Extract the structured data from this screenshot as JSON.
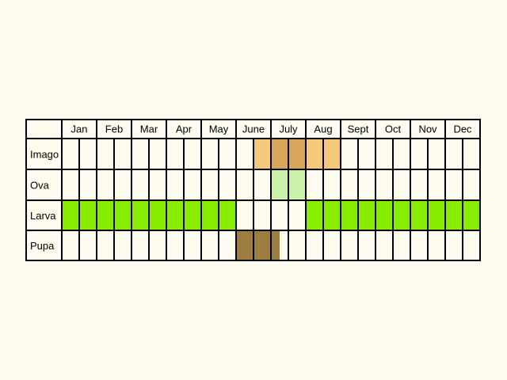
{
  "months": [
    "Jan",
    "Feb",
    "Mar",
    "Apr",
    "May",
    "June",
    "July",
    "Aug",
    "Sept",
    "Oct",
    "Nov",
    "Dec"
  ],
  "stages": [
    {
      "name": "Imago",
      "color": "#f4c97a",
      "intensity_colors": {
        "light": "#f4c97a",
        "dark": "#d9a55a"
      },
      "active": [
        {
          "start": [
            6,
            0.5
          ],
          "end": [
            8,
            1.0
          ],
          "intensity": "light"
        },
        {
          "start": [
            7,
            0.0
          ],
          "end": [
            7,
            1.0
          ],
          "intensity": "dark"
        },
        {
          "start": [
            8,
            0.0
          ],
          "end": [
            8,
            0.2
          ],
          "intensity": "light"
        }
      ]
    },
    {
      "name": "Ova",
      "color": "#c9f2a8",
      "active": [
        {
          "start": [
            7,
            0.0
          ],
          "end": [
            7,
            1.0
          ]
        }
      ]
    },
    {
      "name": "Larva",
      "color": "#88ee00",
      "active": [
        {
          "start": [
            1,
            0.0
          ],
          "end": [
            5,
            1.0
          ]
        },
        {
          "start": [
            8,
            0.0
          ],
          "end": [
            12,
            1.0
          ]
        }
      ]
    },
    {
      "name": "Pupa",
      "color": "#9e7e40",
      "active": [
        {
          "start": [
            6,
            0.0
          ],
          "end": [
            7,
            0.25
          ]
        }
      ]
    }
  ]
}
